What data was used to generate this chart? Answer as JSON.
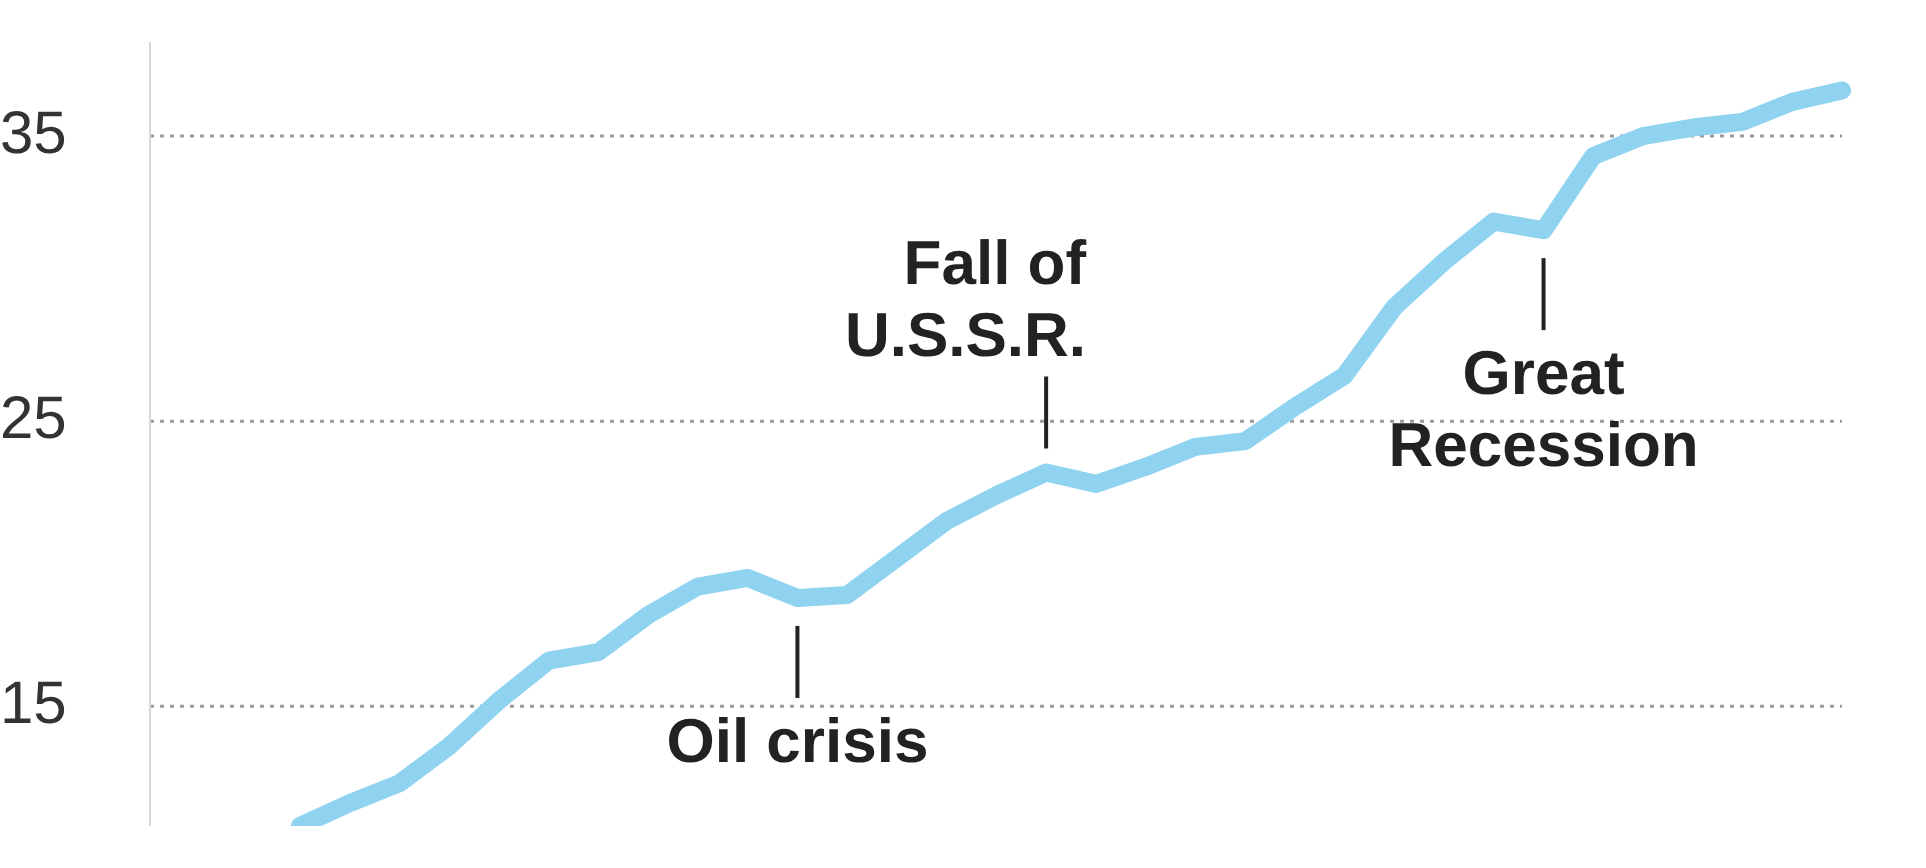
{
  "chart_data": {
    "type": "line",
    "categories": [
      null,
      null,
      null,
      null,
      null,
      null,
      null,
      null,
      null,
      null,
      null,
      null,
      null,
      null,
      null,
      null,
      null,
      null,
      null,
      null,
      null,
      null,
      null,
      null,
      null,
      null,
      null,
      null,
      null,
      null,
      null,
      null
    ],
    "series": [
      {
        "color": "#8fd3f0",
        "values": [
          10.8,
          11.6,
          12.3,
          13.6,
          15.2,
          16.6,
          16.9,
          18.2,
          19.2,
          19.5,
          18.8,
          18.9,
          20.2,
          21.5,
          22.4,
          23.2,
          22.8,
          23.4,
          24.1,
          24.3,
          25.5,
          26.6,
          29.0,
          30.6,
          32.0,
          31.7,
          34.3,
          35.0,
          35.3,
          35.5,
          36.2,
          36.6
        ]
      }
    ],
    "ylim": [
      10.8,
      38.3
    ],
    "yticks": [
      15,
      25,
      35
    ],
    "grid": "y",
    "legend": false,
    "marker": "none",
    "line_style": "solid",
    "annotations": [
      "Oil crisis",
      "Fall of U.S.S.R.",
      "Great Recession"
    ]
  }
}
